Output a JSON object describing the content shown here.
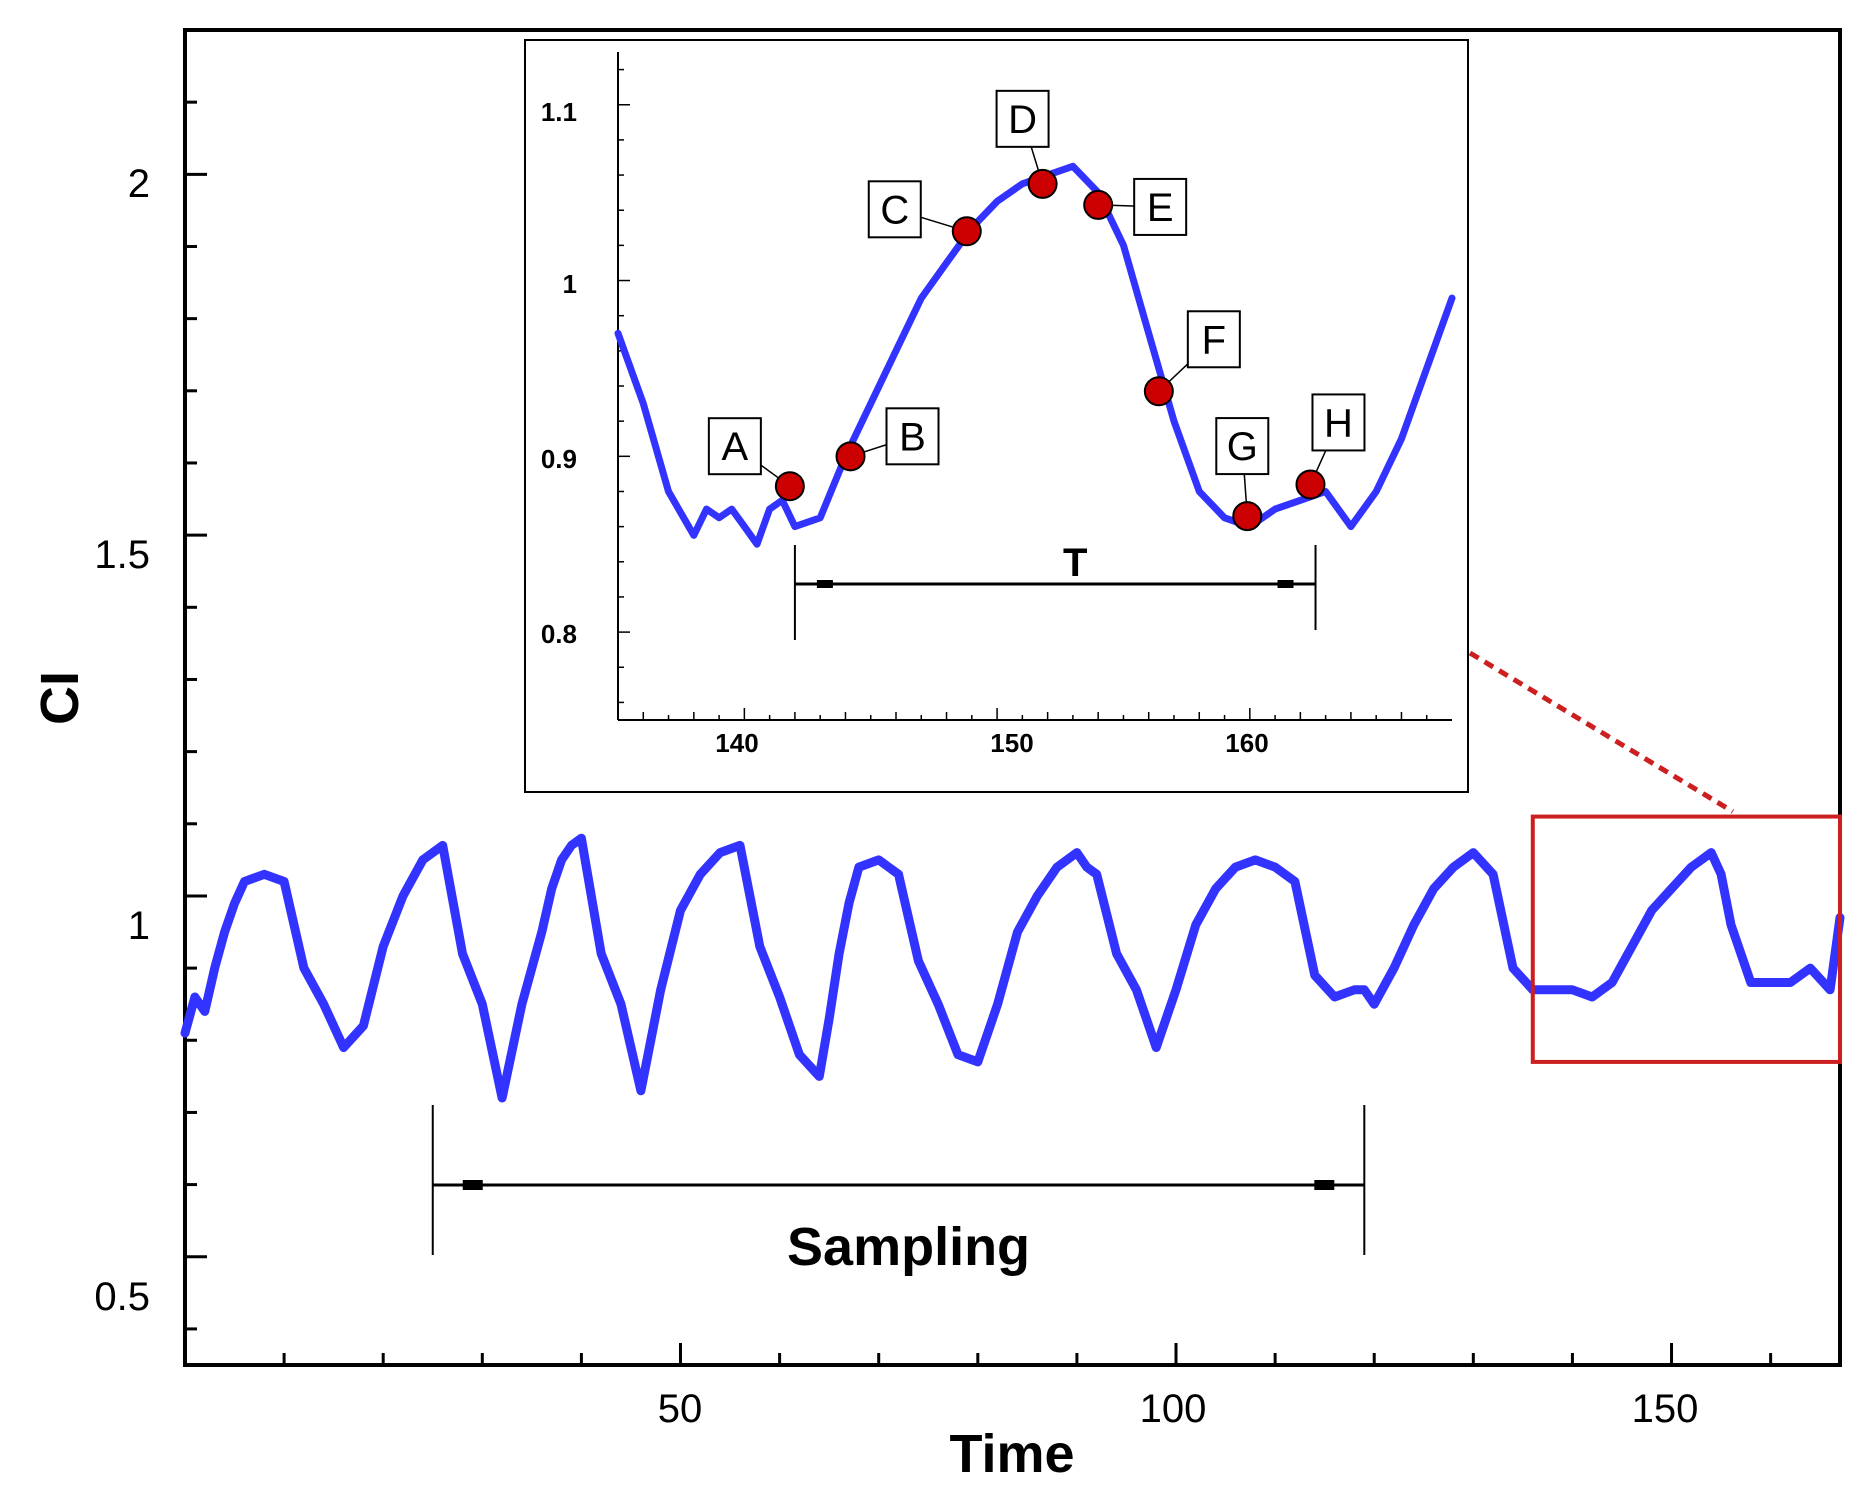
{
  "chart_data": {
    "type": "line",
    "xlabel": "Time",
    "ylabel": "CI",
    "xlim": [
      0,
      167
    ],
    "ylim": [
      0.35,
      2.2
    ],
    "x_ticks": [
      "50",
      "100",
      "150"
    ],
    "y_ticks": [
      "0.5",
      "1",
      "1.5",
      "2"
    ],
    "series": [
      {
        "name": "CI",
        "color": "#3333ff",
        "x": [
          0,
          1,
          2,
          3,
          4,
          5,
          6,
          8,
          10,
          12,
          14,
          16,
          18,
          20,
          22,
          24,
          26,
          28,
          30,
          32,
          34,
          36,
          37,
          38,
          39,
          40,
          42,
          44,
          46,
          48,
          50,
          52,
          54,
          56,
          58,
          60,
          62,
          64,
          65,
          66,
          67,
          68,
          70,
          72,
          74,
          76,
          78,
          80,
          82,
          84,
          86,
          88,
          89,
          90,
          91,
          92,
          94,
          96,
          98,
          100,
          102,
          104,
          106,
          108,
          110,
          112,
          114,
          116,
          118,
          119,
          120,
          122,
          124,
          126,
          128,
          130,
          132,
          134,
          136,
          138,
          140,
          142,
          144,
          146,
          148,
          150,
          152,
          153,
          154,
          155,
          156,
          158,
          160,
          162,
          164,
          166,
          167
        ],
        "y": [
          0.81,
          0.86,
          0.84,
          0.9,
          0.95,
          0.99,
          1.02,
          1.03,
          1.02,
          0.9,
          0.85,
          0.79,
          0.82,
          0.93,
          1.0,
          1.05,
          1.07,
          0.92,
          0.85,
          0.72,
          0.85,
          0.95,
          1.01,
          1.05,
          1.07,
          1.08,
          0.92,
          0.85,
          0.73,
          0.87,
          0.98,
          1.03,
          1.06,
          1.07,
          0.93,
          0.86,
          0.78,
          0.75,
          0.83,
          0.92,
          0.99,
          1.04,
          1.05,
          1.03,
          0.91,
          0.85,
          0.78,
          0.77,
          0.85,
          0.95,
          1.0,
          1.04,
          1.05,
          1.06,
          1.04,
          1.03,
          0.92,
          0.87,
          0.79,
          0.87,
          0.96,
          1.01,
          1.04,
          1.05,
          1.04,
          1.02,
          0.89,
          0.86,
          0.87,
          0.87,
          0.85,
          0.9,
          0.96,
          1.01,
          1.04,
          1.06,
          1.03,
          0.9,
          0.87,
          0.87,
          0.87,
          0.86,
          0.88,
          0.93,
          0.98,
          1.01,
          1.04,
          1.05,
          1.06,
          1.03,
          0.96,
          0.88,
          0.88,
          0.88,
          0.9,
          0.87,
          0.97
        ]
      }
    ],
    "annotations": {
      "sampling": {
        "label": "Sampling",
        "x_start": 25,
        "x_end": 119
      },
      "zoom_box": {
        "x_range": [
          136,
          167
        ],
        "y_range": [
          0.77,
          1.11
        ]
      }
    },
    "inset": {
      "type": "line",
      "xlim": [
        135,
        168
      ],
      "ylim": [
        0.75,
        1.13
      ],
      "x_ticks": [
        "140",
        "150",
        "160"
      ],
      "y_ticks": [
        "0.8",
        "0.9",
        "1",
        "1.1"
      ],
      "series": {
        "color": "#3333ff",
        "x": [
          135,
          136,
          137,
          138,
          138.5,
          139,
          139.5,
          140,
          140.5,
          141,
          141.5,
          142,
          143,
          144,
          145,
          146,
          147,
          148,
          149,
          150,
          151,
          152,
          153,
          154,
          155,
          156,
          157,
          158,
          159,
          160,
          161,
          162,
          163,
          164,
          165,
          166,
          167,
          168
        ],
        "y": [
          0.97,
          0.93,
          0.88,
          0.855,
          0.87,
          0.865,
          0.87,
          0.86,
          0.85,
          0.87,
          0.875,
          0.86,
          0.865,
          0.9,
          0.93,
          0.96,
          0.99,
          1.01,
          1.03,
          1.045,
          1.055,
          1.06,
          1.065,
          1.05,
          1.02,
          0.97,
          0.92,
          0.88,
          0.865,
          0.86,
          0.87,
          0.875,
          0.88,
          0.86,
          0.88,
          0.91,
          0.95,
          0.99
        ]
      },
      "points": [
        {
          "label": "A",
          "x": 141.8,
          "y": 0.883
        },
        {
          "label": "B",
          "x": 144.2,
          "y": 0.9
        },
        {
          "label": "C",
          "x": 148.8,
          "y": 1.028
        },
        {
          "label": "D",
          "x": 151.8,
          "y": 1.055
        },
        {
          "label": "E",
          "x": 154.0,
          "y": 1.043
        },
        {
          "label": "F",
          "x": 156.4,
          "y": 0.937
        },
        {
          "label": "G",
          "x": 159.9,
          "y": 0.866
        },
        {
          "label": "H",
          "x": 162.4,
          "y": 0.884
        }
      ],
      "period": {
        "label": "T",
        "x_start": 142,
        "x_end": 162.6
      }
    }
  }
}
